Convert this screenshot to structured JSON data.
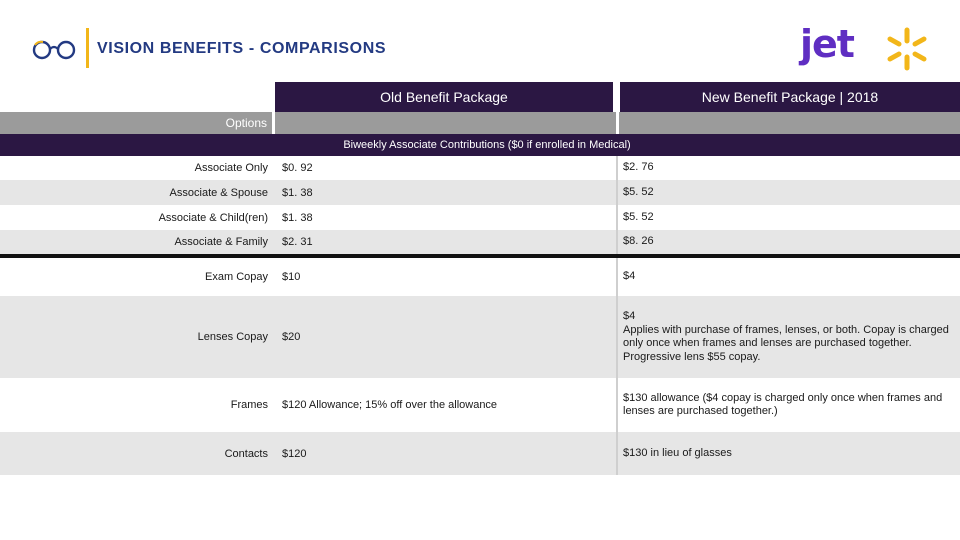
{
  "header": {
    "title": "VISION BENEFITS - COMPARISONS",
    "logo_text": "jet",
    "accent_color": "#f2b619",
    "title_color": "#233a82",
    "brand_color": "#5f2ec2"
  },
  "table": {
    "col_old": "Old Benefit Package",
    "col_new": "New Benefit Package | 2018",
    "options_label": "Options",
    "section_title": "Biweekly Associate Contributions ($0 if enrolled in Medical)",
    "header_color": "#2b1743",
    "contributions": [
      {
        "label": "Associate Only",
        "old": "$0. 92",
        "new": "$2. 76"
      },
      {
        "label": "Associate & Spouse",
        "old": "$1. 38",
        "new": "$5. 52"
      },
      {
        "label": "Associate & Child(ren)",
        "old": "$1. 38",
        "new": "$5. 52"
      },
      {
        "label": "Associate & Family",
        "old": "$2. 31",
        "new": "$8. 26"
      }
    ],
    "details": [
      {
        "label": "Exam Copay",
        "old": "$10",
        "new": "$4"
      },
      {
        "label": "Lenses Copay",
        "old": "$20",
        "new": "$4\nApplies with purchase of frames, lenses, or both. Copay is charged only once when frames and lenses are purchased together. Progressive lens $55 copay."
      },
      {
        "label": "Frames",
        "old": "$120 Allowance;  15% off over the allowance",
        "new": "$130 allowance ($4 copay is charged only once when frames and lenses are purchased together.)"
      },
      {
        "label": "Contacts",
        "old": "$120",
        "new": "$130 in lieu of glasses"
      }
    ]
  }
}
